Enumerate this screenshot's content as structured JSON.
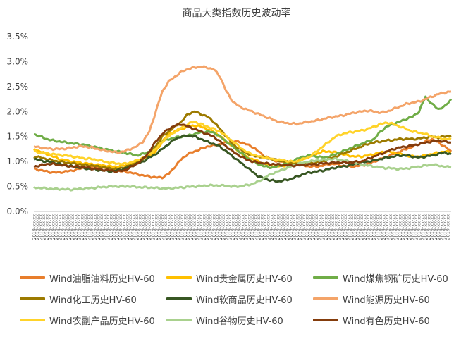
{
  "chart_data": {
    "type": "line",
    "title": "商品大类指数历史波动率",
    "xlabel": "",
    "ylabel": "",
    "ylim": [
      0,
      0.035
    ],
    "y_ticks": [
      "0.0%",
      "0.5%",
      "1.0%",
      "1.5%",
      "2.0%",
      "2.5%",
      "3.0%",
      "3.5%"
    ],
    "grid": false,
    "legend_position": "bottom",
    "x_tick_count": 130,
    "x_tick_label": "2019-xx-xx",
    "x_note": "x-axis tick labels are rotated date strings that are not legible in the screenshot",
    "series": [
      {
        "name": "Wind油脂油料历史HV-60",
        "color": "#E87E2C",
        "values": [
          0.0085,
          0.0083,
          0.008,
          0.0078,
          0.0078,
          0.008,
          0.0082,
          0.0085,
          0.0088,
          0.009,
          0.009,
          0.0088,
          0.0085,
          0.0082,
          0.008,
          0.0078,
          0.0075,
          0.0072,
          0.007,
          0.0068,
          0.0068,
          0.0075,
          0.009,
          0.0105,
          0.0115,
          0.012,
          0.0125,
          0.013,
          0.0132,
          0.0135,
          0.0138,
          0.014,
          0.014,
          0.0135,
          0.013,
          0.012,
          0.011,
          0.0105,
          0.01,
          0.01,
          0.0098,
          0.0095,
          0.0092,
          0.009,
          0.009,
          0.0092,
          0.0095,
          0.0095,
          0.0092,
          0.009,
          0.009,
          0.0092,
          0.0095,
          0.01,
          0.0105,
          0.011,
          0.0115,
          0.012,
          0.0125,
          0.013,
          0.0135,
          0.014,
          0.0145,
          0.0138,
          0.013,
          0.012
        ]
      },
      {
        "name": "Wind贵金属历史HV-60",
        "color": "#FFC000",
        "values": [
          0.0125,
          0.012,
          0.0115,
          0.011,
          0.0105,
          0.0102,
          0.01,
          0.0098,
          0.0096,
          0.0095,
          0.0093,
          0.0092,
          0.009,
          0.009,
          0.0092,
          0.0095,
          0.01,
          0.0105,
          0.011,
          0.012,
          0.014,
          0.0155,
          0.016,
          0.0165,
          0.017,
          0.0172,
          0.017,
          0.0165,
          0.016,
          0.015,
          0.014,
          0.013,
          0.012,
          0.011,
          0.0105,
          0.01,
          0.0095,
          0.0092,
          0.009,
          0.0092,
          0.0095,
          0.01,
          0.0105,
          0.011,
          0.0115,
          0.012,
          0.012,
          0.0118,
          0.0115,
          0.0112,
          0.011,
          0.011,
          0.0112,
          0.0115,
          0.0118,
          0.012,
          0.0118,
          0.0115,
          0.0112,
          0.011,
          0.011,
          0.0112,
          0.0115,
          0.0118,
          0.012,
          0.0118
        ]
      },
      {
        "name": "Wind煤焦钢矿历史HV-60",
        "color": "#70AD47",
        "values": [
          0.0155,
          0.015,
          0.0145,
          0.0142,
          0.014,
          0.0138,
          0.0136,
          0.0135,
          0.0133,
          0.013,
          0.0128,
          0.0125,
          0.0122,
          0.012,
          0.0118,
          0.0115,
          0.0112,
          0.0115,
          0.012,
          0.013,
          0.014,
          0.0145,
          0.0148,
          0.015,
          0.0152,
          0.0155,
          0.0158,
          0.016,
          0.0158,
          0.015,
          0.014,
          0.013,
          0.012,
          0.011,
          0.01,
          0.0095,
          0.009,
          0.0088,
          0.009,
          0.0095,
          0.01,
          0.0105,
          0.011,
          0.0112,
          0.011,
          0.0108,
          0.011,
          0.0115,
          0.012,
          0.0125,
          0.013,
          0.0135,
          0.014,
          0.0145,
          0.016,
          0.017,
          0.0175,
          0.018,
          0.0185,
          0.019,
          0.02,
          0.023,
          0.0215,
          0.0205,
          0.021,
          0.0225
        ]
      },
      {
        "name": "Wind化工历史HV-60",
        "color": "#9C7A00",
        "values": [
          0.011,
          0.0108,
          0.0105,
          0.0102,
          0.01,
          0.0098,
          0.0096,
          0.0095,
          0.0093,
          0.0092,
          0.009,
          0.0088,
          0.0086,
          0.0085,
          0.0088,
          0.0092,
          0.0098,
          0.0105,
          0.0115,
          0.013,
          0.015,
          0.016,
          0.017,
          0.018,
          0.0195,
          0.02,
          0.0195,
          0.019,
          0.018,
          0.0165,
          0.015,
          0.0135,
          0.0125,
          0.0118,
          0.0112,
          0.011,
          0.0108,
          0.0105,
          0.0102,
          0.01,
          0.0098,
          0.0096,
          0.0095,
          0.0096,
          0.0098,
          0.01,
          0.0105,
          0.011,
          0.0115,
          0.012,
          0.0125,
          0.013,
          0.0135,
          0.0138,
          0.014,
          0.0142,
          0.0143,
          0.0145,
          0.0145,
          0.0145,
          0.0146,
          0.0148,
          0.015,
          0.0148,
          0.015,
          0.0152
        ]
      },
      {
        "name": "Wind软商品历史HV-60",
        "color": "#385723",
        "values": [
          0.0105,
          0.0102,
          0.01,
          0.0098,
          0.0095,
          0.0092,
          0.009,
          0.0088,
          0.0086,
          0.0085,
          0.0083,
          0.0082,
          0.008,
          0.0082,
          0.0085,
          0.009,
          0.0095,
          0.01,
          0.0108,
          0.0115,
          0.0125,
          0.0135,
          0.0145,
          0.015,
          0.0152,
          0.015,
          0.0145,
          0.014,
          0.0135,
          0.013,
          0.012,
          0.011,
          0.01,
          0.009,
          0.008,
          0.007,
          0.0065,
          0.0062,
          0.006,
          0.0062,
          0.0065,
          0.007,
          0.0075,
          0.0078,
          0.008,
          0.0082,
          0.0085,
          0.0088,
          0.009,
          0.0092,
          0.0095,
          0.0098,
          0.01,
          0.0102,
          0.0105,
          0.0108,
          0.011,
          0.0112,
          0.0112,
          0.011,
          0.0108,
          0.011,
          0.0112,
          0.0115,
          0.0118,
          0.0115
        ]
      },
      {
        "name": "Wind能源历史HV-60",
        "color": "#F4A469",
        "values": [
          0.013,
          0.0128,
          0.0126,
          0.0125,
          0.0125,
          0.0126,
          0.0128,
          0.013,
          0.013,
          0.0128,
          0.0125,
          0.0122,
          0.012,
          0.0118,
          0.012,
          0.0125,
          0.013,
          0.014,
          0.016,
          0.02,
          0.024,
          0.026,
          0.027,
          0.028,
          0.0285,
          0.0288,
          0.029,
          0.0288,
          0.0285,
          0.027,
          0.024,
          0.022,
          0.021,
          0.0205,
          0.02,
          0.0195,
          0.019,
          0.0185,
          0.018,
          0.0178,
          0.0176,
          0.0175,
          0.0178,
          0.018,
          0.0182,
          0.0185,
          0.0188,
          0.019,
          0.0192,
          0.0195,
          0.0198,
          0.02,
          0.0202,
          0.02,
          0.0198,
          0.02,
          0.0205,
          0.021,
          0.0215,
          0.0218,
          0.022,
          0.0225,
          0.023,
          0.0235,
          0.0238,
          0.024
        ]
      },
      {
        "name": "Wind农副产品历史HV-60",
        "color": "#FFD32A",
        "values": [
          0.012,
          0.0118,
          0.0116,
          0.0115,
          0.0113,
          0.0112,
          0.011,
          0.0108,
          0.0106,
          0.0105,
          0.0103,
          0.01,
          0.0098,
          0.0096,
          0.0095,
          0.0098,
          0.0102,
          0.0108,
          0.0115,
          0.0125,
          0.014,
          0.015,
          0.016,
          0.0168,
          0.0175,
          0.018,
          0.0175,
          0.017,
          0.0165,
          0.016,
          0.015,
          0.014,
          0.013,
          0.012,
          0.0115,
          0.011,
          0.0108,
          0.0105,
          0.0103,
          0.0102,
          0.01,
          0.01,
          0.0105,
          0.011,
          0.012,
          0.013,
          0.014,
          0.015,
          0.0155,
          0.0158,
          0.016,
          0.0162,
          0.0165,
          0.017,
          0.0175,
          0.0178,
          0.0175,
          0.017,
          0.0165,
          0.016,
          0.0158,
          0.0155,
          0.015,
          0.0148,
          0.0145,
          0.0145
        ]
      },
      {
        "name": "Wind谷物历史HV-60",
        "color": "#A9D18E",
        "values": [
          0.0048,
          0.0047,
          0.0046,
          0.0045,
          0.0045,
          0.0044,
          0.0044,
          0.0045,
          0.0046,
          0.0047,
          0.0048,
          0.0049,
          0.005,
          0.005,
          0.005,
          0.005,
          0.0049,
          0.0048,
          0.0048,
          0.0047,
          0.0046,
          0.0046,
          0.0047,
          0.0048,
          0.0049,
          0.005,
          0.0051,
          0.0052,
          0.0052,
          0.0052,
          0.0051,
          0.005,
          0.005,
          0.0052,
          0.0055,
          0.006,
          0.0068,
          0.0075,
          0.008,
          0.0085,
          0.009,
          0.0095,
          0.0098,
          0.01,
          0.0102,
          0.0103,
          0.0105,
          0.0105,
          0.0103,
          0.01,
          0.0097,
          0.0094,
          0.0092,
          0.009,
          0.0088,
          0.0087,
          0.0086,
          0.0085,
          0.0086,
          0.0088,
          0.009,
          0.0092,
          0.0094,
          0.0092,
          0.009,
          0.0088
        ]
      },
      {
        "name": "Wind有色历史HV-60",
        "color": "#843C0C",
        "values": [
          0.009,
          0.0092,
          0.0095,
          0.0095,
          0.0093,
          0.0092,
          0.009,
          0.009,
          0.0088,
          0.0086,
          0.0085,
          0.0083,
          0.0082,
          0.008,
          0.0082,
          0.0088,
          0.0095,
          0.0105,
          0.012,
          0.014,
          0.0155,
          0.0165,
          0.0172,
          0.0175,
          0.017,
          0.0165,
          0.016,
          0.0155,
          0.015,
          0.014,
          0.013,
          0.012,
          0.0112,
          0.0105,
          0.01,
          0.0098,
          0.0096,
          0.0095,
          0.0094,
          0.0093,
          0.0092,
          0.0092,
          0.0093,
          0.0094,
          0.0095,
          0.0096,
          0.0097,
          0.0098,
          0.0098,
          0.0098,
          0.0099,
          0.01,
          0.0105,
          0.011,
          0.0115,
          0.012,
          0.0125,
          0.0128,
          0.013,
          0.0132,
          0.0135,
          0.0138,
          0.014,
          0.0142,
          0.014,
          0.0138
        ]
      }
    ]
  }
}
